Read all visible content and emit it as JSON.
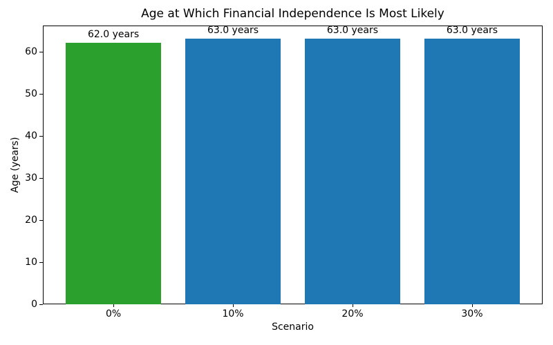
{
  "chart_data": {
    "type": "bar",
    "title": "Age at Which Financial Independence Is Most Likely",
    "xlabel": "Scenario",
    "ylabel": "Age (years)",
    "categories": [
      "0%",
      "10%",
      "20%",
      "30%"
    ],
    "values": [
      62.0,
      63.0,
      63.0,
      63.0
    ],
    "bar_labels": [
      "62.0 years",
      "63.0 years",
      "63.0 years",
      "63.0 years"
    ],
    "bar_colors": [
      "#2ca02c",
      "#1f77b4",
      "#1f77b4",
      "#1f77b4"
    ],
    "ylim": [
      0,
      66.15
    ],
    "yticks": [
      0,
      10,
      20,
      30,
      40,
      50,
      60
    ],
    "grid": false,
    "legend_position": "none",
    "background_color": "#ffffff",
    "text_color": "#000000"
  }
}
